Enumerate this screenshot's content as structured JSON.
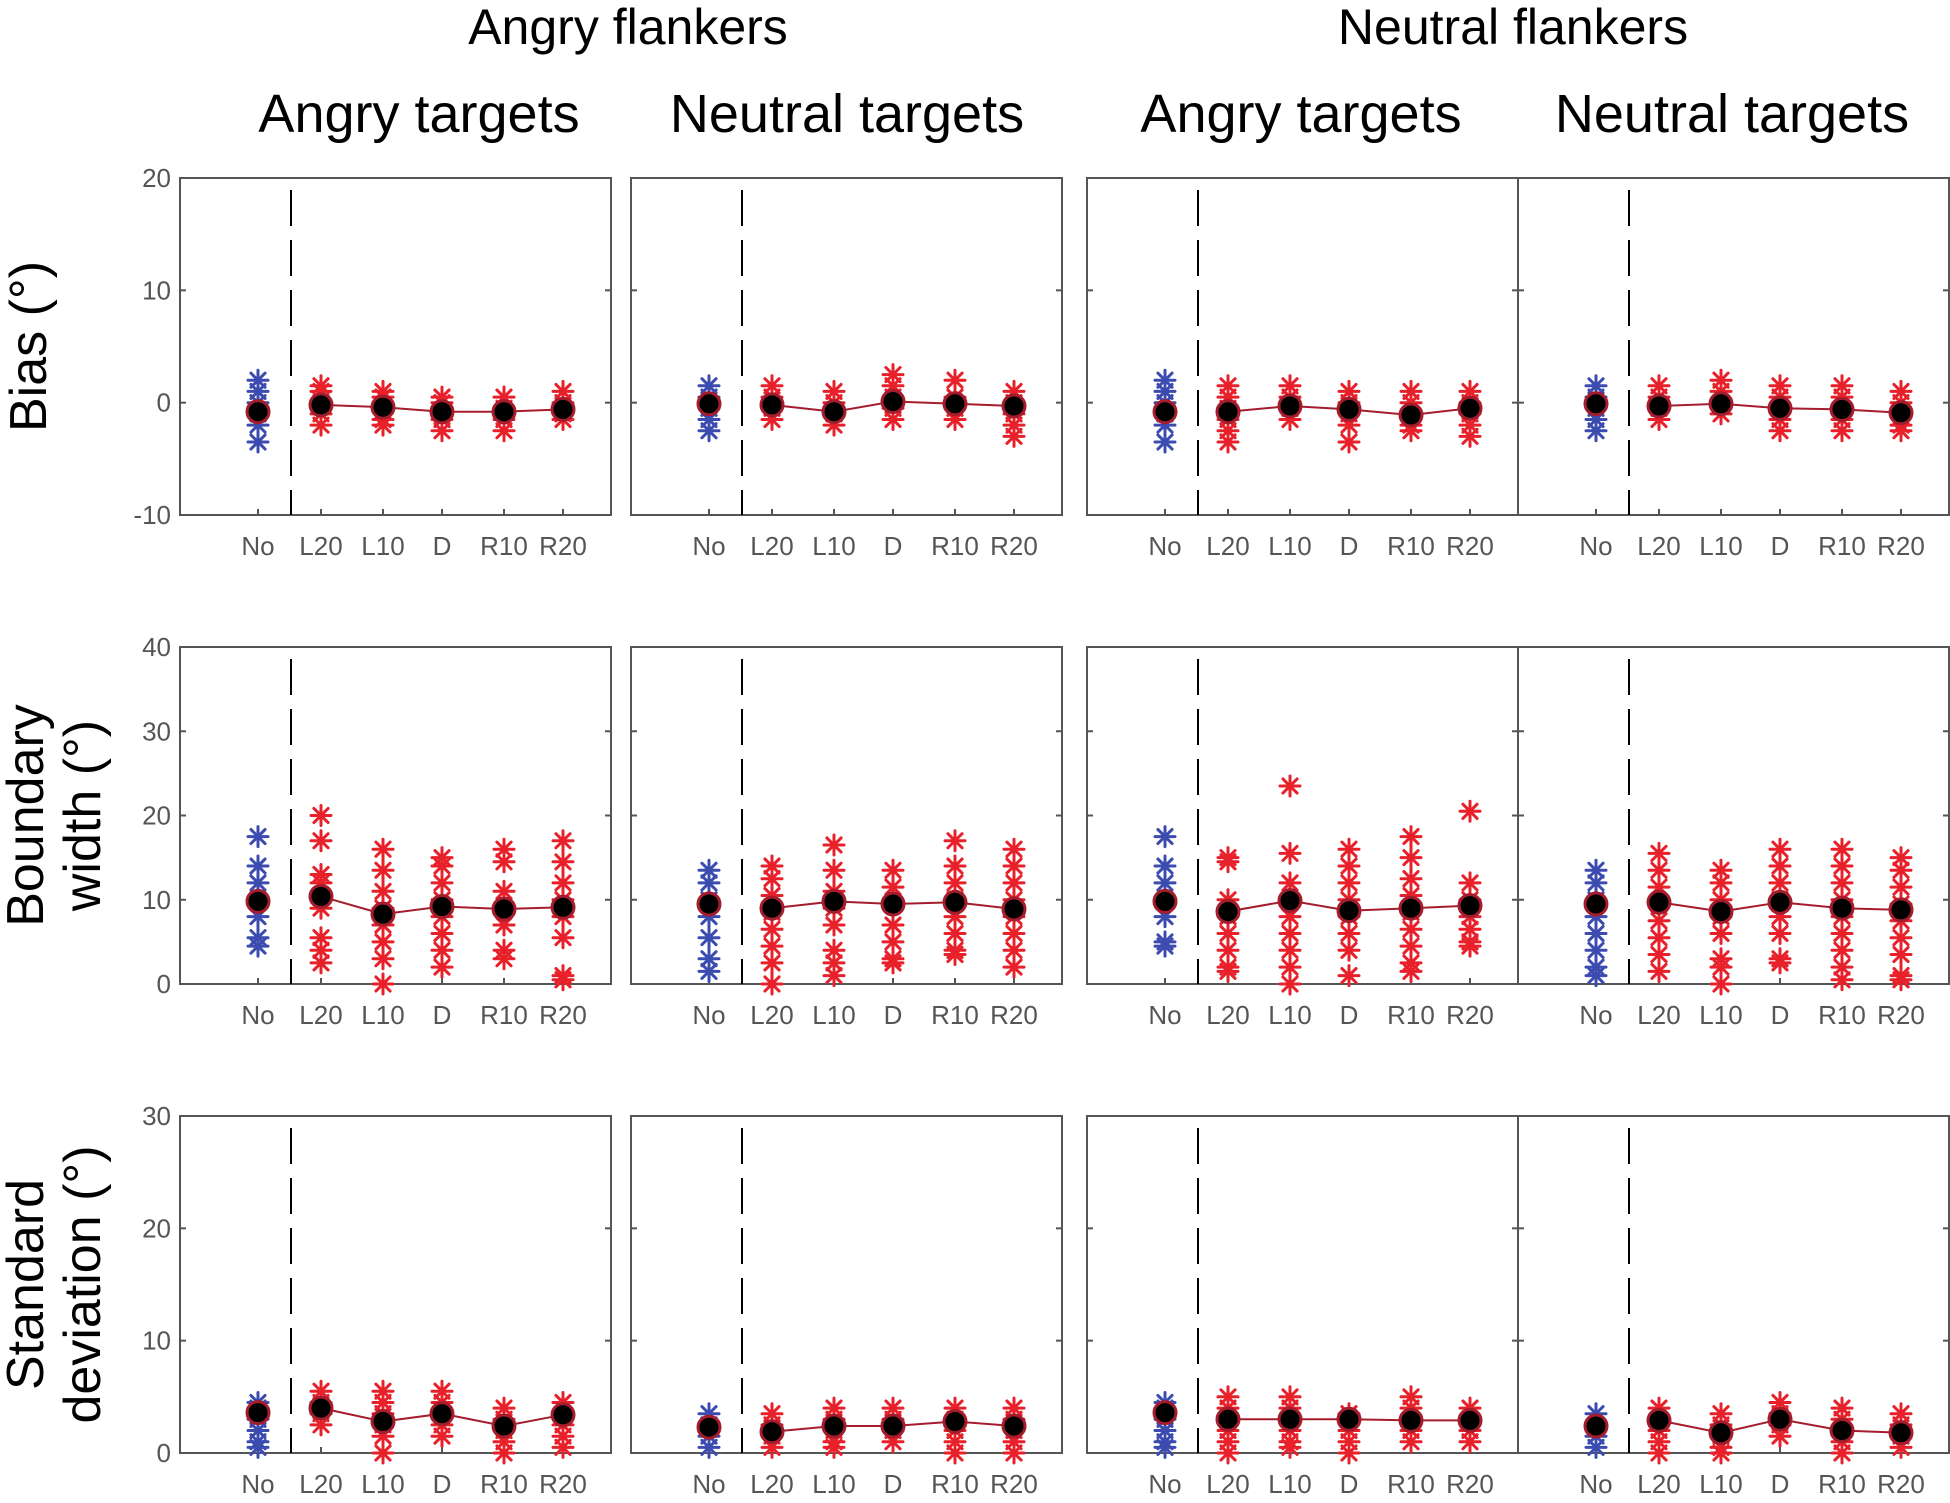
{
  "colors": {
    "baseline": "#3b4bb0",
    "flanker": "#e8202a",
    "mean_line": "#a51d2d",
    "mean_marker": "#000000",
    "axis": "#555555"
  },
  "chart_data": {
    "type": "scatter",
    "groups": [
      {
        "title": "Angry flankers",
        "columns": [
          "Angry targets",
          "Neutral targets"
        ]
      },
      {
        "title": "Neutral flankers",
        "columns": [
          "Angry targets",
          "Neutral targets"
        ]
      }
    ],
    "categories": [
      "No",
      "L20",
      "L10",
      "D",
      "R10",
      "R20"
    ],
    "rows": [
      {
        "ylabel": [
          "Bias (°)"
        ],
        "ylim": [
          -10,
          20
        ],
        "yticks": [
          -10,
          0,
          10,
          20
        ],
        "means": [
          [
            -0.8,
            -0.2,
            -0.4,
            -0.8,
            -0.8,
            -0.6
          ],
          [
            -0.1,
            -0.2,
            -0.8,
            0.1,
            -0.1,
            -0.3
          ],
          [
            -0.8,
            -0.8,
            -0.3,
            -0.6,
            -1.1,
            -0.5
          ],
          [
            -0.1,
            -0.3,
            -0.1,
            -0.5,
            -0.6,
            -0.9
          ]
        ],
        "points": [
          [
            [
              2,
              1,
              0,
              -1,
              -2,
              -3.5
            ],
            [
              1.5,
              1,
              0,
              -1,
              -2
            ],
            [
              1,
              0.5,
              -0.5,
              -1.5,
              -2
            ],
            [
              0.5,
              0,
              -1,
              -1.5,
              -2.5
            ],
            [
              0.5,
              -0.5,
              -1.5,
              -2.5
            ],
            [
              1,
              0,
              -1,
              -1.5
            ]
          ],
          [
            [
              1.5,
              0.5,
              -0.5,
              -1.5,
              -2.5
            ],
            [
              1.5,
              0.5,
              -0.5,
              -1.5
            ],
            [
              1,
              0,
              -1,
              -2
            ],
            [
              2.5,
              1.5,
              0.5,
              -0.5,
              -1.5
            ],
            [
              2,
              0.5,
              -0.5,
              -1.5
            ],
            [
              1,
              0,
              -1,
              -2,
              -3
            ]
          ],
          [
            [
              2,
              1,
              0,
              -1,
              -2,
              -3.5
            ],
            [
              1.5,
              0.5,
              -0.5,
              -1.5,
              -2.5,
              -3.5
            ],
            [
              1.5,
              0.5,
              -0.5,
              -1.5
            ],
            [
              1,
              0,
              -1,
              -2,
              -3.5
            ],
            [
              1,
              0,
              -1,
              -2,
              -2.5
            ],
            [
              1,
              0,
              -1,
              -2,
              -3
            ]
          ],
          [
            [
              1.5,
              0.5,
              -0.5,
              -1.5,
              -2.5
            ],
            [
              1.5,
              0.5,
              -0.5,
              -1.5
            ],
            [
              2,
              1,
              0,
              -1
            ],
            [
              1.5,
              0.5,
              -0.5,
              -1.5,
              -2.5
            ],
            [
              1.5,
              0.5,
              -0.5,
              -1.5,
              -2.5
            ],
            [
              1,
              0,
              -1,
              -2,
              -2.5
            ]
          ]
        ]
      },
      {
        "ylabel": [
          "Boundary",
          "width (°)"
        ],
        "ylim": [
          0,
          40
        ],
        "yticks": [
          0,
          10,
          20,
          30,
          40
        ],
        "means": [
          [
            9.8,
            10.4,
            8.3,
            9.2,
            8.9,
            9.1
          ],
          [
            9.5,
            9.0,
            9.8,
            9.5,
            9.7,
            8.9
          ],
          [
            9.8,
            8.6,
            9.9,
            8.7,
            9.0,
            9.3
          ],
          [
            9.5,
            9.7,
            8.6,
            9.7,
            9.0,
            8.8
          ]
        ],
        "points": [
          [
            [
              17.5,
              14,
              12,
              10,
              8,
              5.5,
              4.5
            ],
            [
              20,
              17,
              13,
              12,
              10.5,
              9,
              5.5,
              4,
              2.5
            ],
            [
              16,
              13.5,
              11,
              9,
              7,
              5,
              3,
              0
            ],
            [
              15,
              14,
              12,
              10,
              8,
              6,
              4,
              2
            ],
            [
              16,
              14.5,
              11,
              9,
              7,
              4,
              3
            ],
            [
              17,
              14.5,
              12,
              10,
              8,
              5.5,
              1,
              0.5
            ]
          ],
          [
            [
              13.5,
              12,
              10,
              8,
              5.5,
              3,
              1.5
            ],
            [
              14,
              12.5,
              10.5,
              8.5,
              6.5,
              4.5,
              2.5,
              0
            ],
            [
              16.5,
              13.5,
              11,
              9,
              7,
              4,
              2.5,
              1
            ],
            [
              13.5,
              11.5,
              9.5,
              7,
              5,
              3,
              2.5
            ],
            [
              17,
              14,
              12,
              10,
              8,
              6,
              4,
              3.5
            ],
            [
              16,
              14,
              12,
              10,
              8,
              6,
              4,
              2
            ]
          ],
          [
            [
              17.5,
              14,
              12,
              10,
              8,
              5,
              4.5
            ],
            [
              15,
              14.5,
              10,
              8,
              6,
              4,
              2,
              1.5
            ],
            [
              23.5,
              15.5,
              12,
              10,
              8,
              6,
              4,
              2,
              0
            ],
            [
              16,
              14,
              12,
              10,
              8,
              6,
              4,
              1
            ],
            [
              17.5,
              15,
              12.5,
              10.5,
              8.5,
              6.5,
              4.5,
              2.5,
              1.5
            ],
            [
              20.5,
              12,
              10,
              8,
              6.5,
              5,
              4.5
            ]
          ],
          [
            [
              13.5,
              12,
              10,
              8,
              6,
              4,
              2,
              1
            ],
            [
              15.5,
              13.5,
              11.5,
              9.5,
              7.5,
              5.5,
              3.5,
              1.5
            ],
            [
              13.5,
              12,
              10,
              8,
              6,
              3,
              2,
              0
            ],
            [
              16,
              14,
              12,
              10,
              8,
              6,
              3,
              2.5
            ],
            [
              16,
              14,
              12,
              10,
              8,
              6,
              4,
              2,
              0.5
            ],
            [
              15,
              13.5,
              11.5,
              9.5,
              7.5,
              5.5,
              3.5,
              1,
              0.5
            ]
          ]
        ]
      },
      {
        "ylabel": [
          "Standard",
          "deviation (°)"
        ],
        "ylim": [
          0,
          30
        ],
        "yticks": [
          0,
          10,
          20,
          30
        ],
        "means": [
          [
            3.6,
            4.0,
            2.8,
            3.5,
            2.4,
            3.4
          ],
          [
            2.3,
            1.9,
            2.4,
            2.4,
            2.8,
            2.4
          ],
          [
            3.6,
            3.0,
            3.0,
            3.0,
            2.9,
            2.9
          ],
          [
            2.4,
            2.9,
            1.8,
            3.0,
            2.0,
            1.8
          ]
        ],
        "points": [
          [
            [
              4.5,
              4,
              3,
              2,
              1,
              0.5
            ],
            [
              5.5,
              4.5,
              3.5,
              2.5
            ],
            [
              5.5,
              4.5,
              3.5,
              2.5,
              1.5,
              0
            ],
            [
              5.5,
              4.5,
              3.5,
              2.5,
              1.5
            ],
            [
              4,
              3,
              2,
              1,
              0
            ],
            [
              4.5,
              3.5,
              2.5,
              1.5,
              0.5
            ]
          ],
          [
            [
              3.5,
              2.5,
              1.5,
              0.5
            ],
            [
              3.5,
              2.5,
              1.5,
              0.5
            ],
            [
              4,
              3,
              2,
              1,
              0.5
            ],
            [
              4,
              3,
              2,
              1
            ],
            [
              4,
              3,
              2,
              1,
              0
            ],
            [
              4,
              3,
              2,
              1,
              0
            ]
          ],
          [
            [
              4.5,
              4,
              3,
              2,
              1,
              0.5
            ],
            [
              5,
              4,
              3,
              2,
              1,
              0
            ],
            [
              5,
              4,
              3,
              2,
              1,
              0.5
            ],
            [
              3.5,
              3,
              2,
              1,
              0
            ],
            [
              5,
              4,
              3,
              2,
              1
            ],
            [
              4,
              3,
              2,
              1
            ]
          ],
          [
            [
              3.5,
              2.5,
              1.5,
              0.5
            ],
            [
              4,
              3,
              2,
              1,
              0
            ],
            [
              3.5,
              2.5,
              1.5,
              0.5,
              0
            ],
            [
              4.5,
              3.5,
              2.5,
              1.5
            ],
            [
              4,
              3,
              2,
              1,
              0
            ],
            [
              3.5,
              2.5,
              1.5,
              0.5
            ]
          ]
        ]
      }
    ]
  }
}
